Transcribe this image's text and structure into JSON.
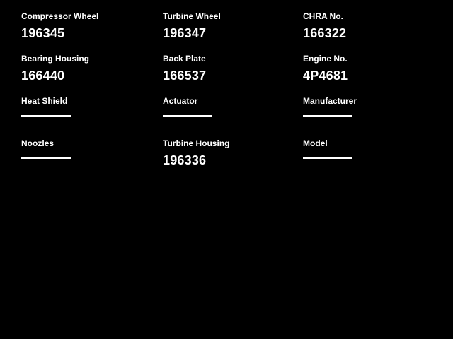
{
  "page": {
    "background_color": "#000000",
    "text_color": "#ffffff",
    "placeholder_line_color": "#ffffff"
  },
  "fields": [
    {
      "label": "Compressor Wheel",
      "value": "196345"
    },
    {
      "label": "Turbine Wheel",
      "value": "196347"
    },
    {
      "label": "CHRA No.",
      "value": "166322"
    },
    {
      "label": "Bearing Housing",
      "value": "166440"
    },
    {
      "label": "Back Plate",
      "value": "166537"
    },
    {
      "label": "Engine No.",
      "value": "4P4681"
    },
    {
      "label": "Heat Shield",
      "value": ""
    },
    {
      "label": "Actuator",
      "value": ""
    },
    {
      "label": "Manufacturer",
      "value": ""
    },
    {
      "label": "Noozles",
      "value": ""
    },
    {
      "label": "Turbine Housing",
      "value": "196336"
    },
    {
      "label": "Model",
      "value": ""
    }
  ]
}
